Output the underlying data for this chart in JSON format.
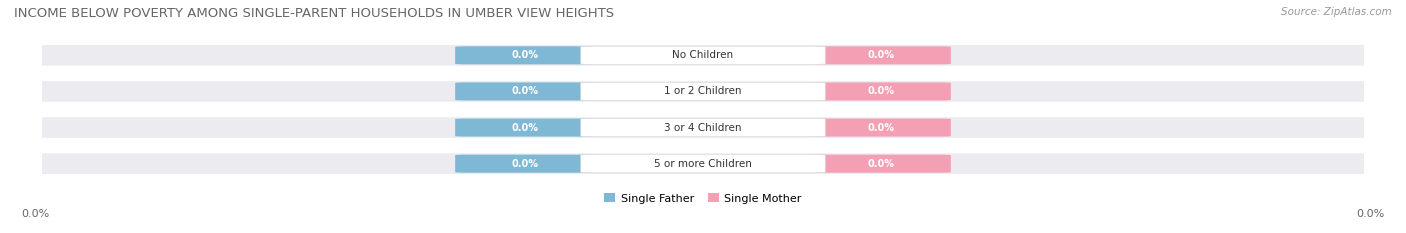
{
  "title": "INCOME BELOW POVERTY AMONG SINGLE-PARENT HOUSEHOLDS IN UMBER VIEW HEIGHTS",
  "source": "Source: ZipAtlas.com",
  "categories": [
    "No Children",
    "1 or 2 Children",
    "3 or 4 Children",
    "5 or more Children"
  ],
  "single_father_values": [
    0.0,
    0.0,
    0.0,
    0.0
  ],
  "single_mother_values": [
    0.0,
    0.0,
    0.0,
    0.0
  ],
  "father_color": "#7eb8d4",
  "mother_color": "#f4a0b4",
  "bar_bg_color": "#ebebf0",
  "center_box_color": "#ffffff",
  "center_box_edge": "#dddddd",
  "background_color": "#ffffff",
  "axis_label_left": "0.0%",
  "axis_label_right": "0.0%",
  "legend_father": "Single Father",
  "legend_mother": "Single Mother",
  "title_fontsize": 9.5,
  "source_fontsize": 7.5,
  "bar_label_fontsize": 7,
  "category_fontsize": 7.5,
  "legend_fontsize": 8,
  "axis_tick_fontsize": 8
}
